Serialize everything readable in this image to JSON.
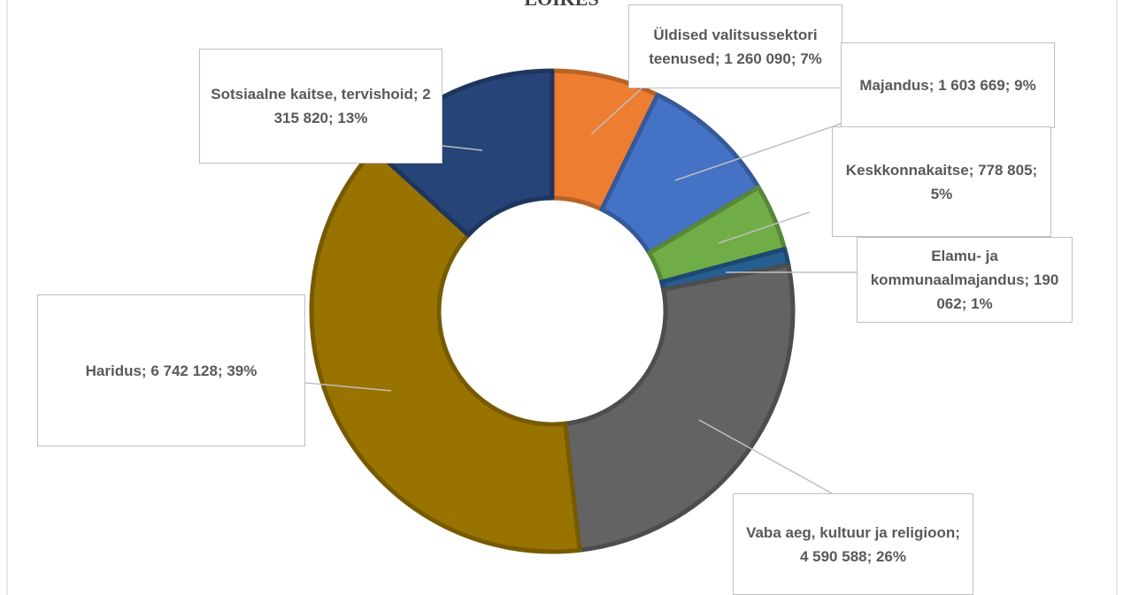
{
  "chart_data": {
    "type": "donut",
    "title": "LÕIKES",
    "values": [
      1260090,
      1603669,
      778805,
      190062,
      4590588,
      6742128,
      2315820
    ],
    "value_labels": [
      "Üldised valitsussektori teenused; 1 260 090; 7%",
      "Majandus; 1 603 669; 9%",
      "Keskkonnakaitse; 778 805; 5%",
      "Elamu- ja kommunaalmajandus; 190 062; 1%",
      "Vaba aeg, kultuur ja religioon; 4 590 588; 26%",
      "Haridus; 6 742 128; 39%",
      "Sotsiaalne kaitse, tervishoid; 2 315 820; 13%"
    ],
    "colors": [
      "#ed7d31",
      "#4472c4",
      "#70ad47",
      "#255e91",
      "#636363",
      "#997300",
      "#264478"
    ]
  }
}
